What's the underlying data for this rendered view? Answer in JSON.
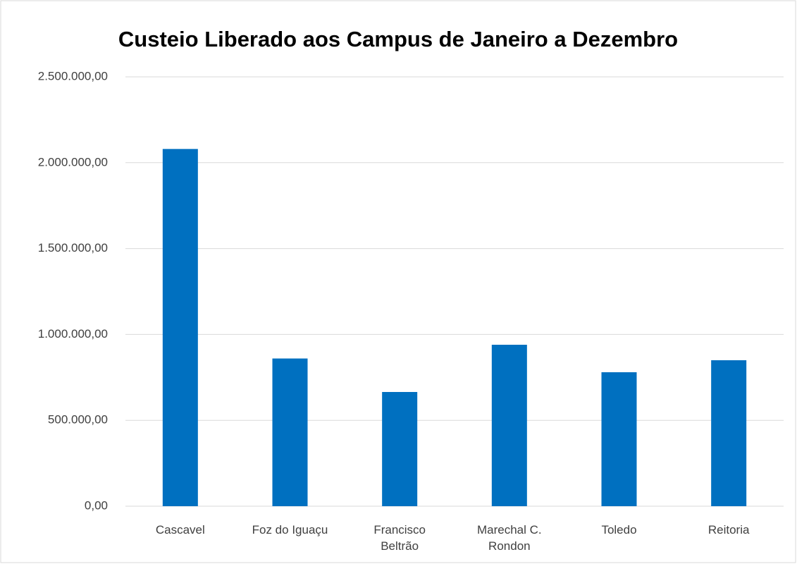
{
  "chart_data": {
    "type": "bar",
    "title": "Custeio Liberado aos Campus de Janeiro a Dezembro",
    "categories": [
      "Cascavel",
      "Foz do Iguaçu",
      "Francisco Beltrão",
      "Marechal C. Rondon",
      "Toledo",
      "Reitoria"
    ],
    "values": [
      2080000,
      860000,
      665000,
      940000,
      780000,
      850000
    ],
    "color": "#0070c0",
    "ylim": [
      0,
      2500000
    ],
    "yticks": [
      {
        "value": 0,
        "label": "0,00"
      },
      {
        "value": 500000,
        "label": "500.000,00"
      },
      {
        "value": 1000000,
        "label": "1.000.000,00"
      },
      {
        "value": 1500000,
        "label": "1.500.000,00"
      },
      {
        "value": 2000000,
        "label": "2.000.000,00"
      },
      {
        "value": 2500000,
        "label": "2.500.000,00"
      }
    ],
    "grid": true
  }
}
